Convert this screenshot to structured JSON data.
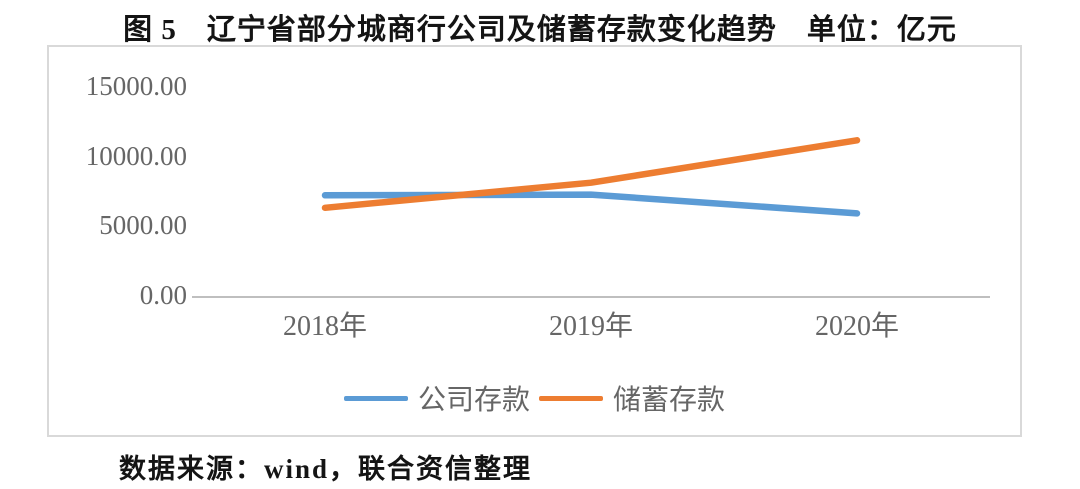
{
  "figure": {
    "title": "图 5　辽宁省部分城商行公司及储蓄存款变化趋势　单位：亿元",
    "source_note": "数据来源：wind，联合资信整理"
  },
  "chart_data": {
    "type": "line",
    "title": "图 5　辽宁省部分城商行公司及储蓄存款变化趋势",
    "unit": "亿元",
    "categories": [
      "2018年",
      "2019年",
      "2020年"
    ],
    "series": [
      {
        "name": "公司存款",
        "color": "#5B9BD5",
        "values": [
          7300,
          7350,
          6000
        ]
      },
      {
        "name": "储蓄存款",
        "color": "#ED7D31",
        "values": [
          6400,
          8200,
          11250
        ]
      }
    ],
    "yticks": [
      "15000.00",
      "10000.00",
      "5000.00",
      "0.00"
    ],
    "ylim": [
      0,
      15000
    ],
    "grid": false,
    "legend_position": "bottom"
  }
}
